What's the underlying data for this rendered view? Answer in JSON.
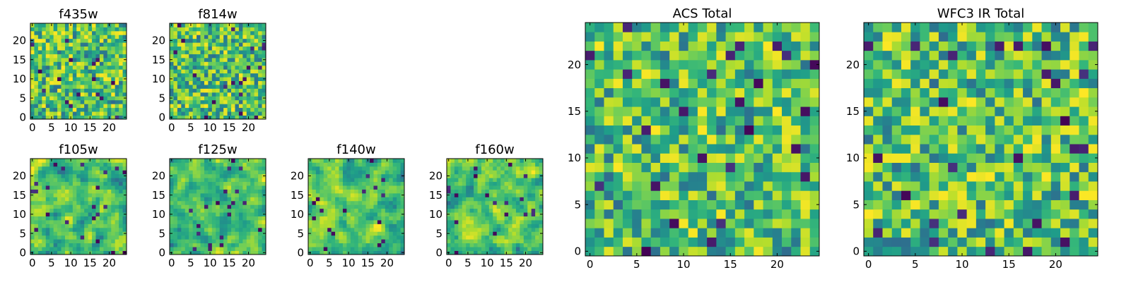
{
  "figure": {
    "background": "#ffffff"
  },
  "chart_data": [
    {
      "type": "heatmap",
      "title": "f435w",
      "xticks": [
        "0",
        "5",
        "10",
        "15",
        "20"
      ],
      "yticks": [
        "0",
        "5",
        "10",
        "15",
        "20"
      ],
      "xlim": [
        -0.5,
        24.5
      ],
      "ylim": [
        -0.5,
        24.5
      ],
      "grid_size": 25,
      "colormap": "viridis",
      "grid": false
    },
    {
      "type": "heatmap",
      "title": "f814w",
      "xticks": [
        "0",
        "5",
        "10",
        "15",
        "20"
      ],
      "yticks": [
        "0",
        "5",
        "10",
        "15",
        "20"
      ],
      "xlim": [
        -0.5,
        24.5
      ],
      "ylim": [
        -0.5,
        24.5
      ],
      "grid_size": 25,
      "colormap": "viridis",
      "grid": false
    },
    {
      "type": "heatmap",
      "title": "f105w",
      "xticks": [
        "0",
        "5",
        "10",
        "15",
        "20"
      ],
      "yticks": [
        "0",
        "5",
        "10",
        "15",
        "20"
      ],
      "xlim": [
        -0.5,
        24.5
      ],
      "ylim": [
        -0.5,
        24.5
      ],
      "grid_size": 25,
      "colormap": "viridis",
      "grid": false
    },
    {
      "type": "heatmap",
      "title": "f125w",
      "xticks": [
        "0",
        "5",
        "10",
        "15",
        "20"
      ],
      "yticks": [
        "0",
        "5",
        "10",
        "15",
        "20"
      ],
      "xlim": [
        -0.5,
        24.5
      ],
      "ylim": [
        -0.5,
        24.5
      ],
      "grid_size": 25,
      "colormap": "viridis",
      "grid": false
    },
    {
      "type": "heatmap",
      "title": "f140w",
      "xticks": [
        "0",
        "5",
        "10",
        "15",
        "20"
      ],
      "yticks": [
        "0",
        "5",
        "10",
        "15",
        "20"
      ],
      "xlim": [
        -0.5,
        24.5
      ],
      "ylim": [
        -0.5,
        24.5
      ],
      "grid_size": 25,
      "colormap": "viridis",
      "grid": false
    },
    {
      "type": "heatmap",
      "title": "f160w",
      "xticks": [
        "0",
        "5",
        "10",
        "15",
        "20"
      ],
      "yticks": [
        "0",
        "5",
        "10",
        "15",
        "20"
      ],
      "xlim": [
        -0.5,
        24.5
      ],
      "ylim": [
        -0.5,
        24.5
      ],
      "grid_size": 25,
      "colormap": "viridis",
      "grid": false
    },
    {
      "type": "heatmap",
      "title": "ACS Total",
      "xticks": [
        "0",
        "5",
        "10",
        "15",
        "20"
      ],
      "yticks": [
        "0",
        "5",
        "10",
        "15",
        "20"
      ],
      "xlim": [
        -0.5,
        24.5
      ],
      "ylim": [
        -0.5,
        24.5
      ],
      "grid_size": 25,
      "colormap": "viridis",
      "grid": false
    },
    {
      "type": "heatmap",
      "title": "WFC3 IR Total",
      "xticks": [
        "0",
        "5",
        "10",
        "15",
        "20"
      ],
      "yticks": [
        "0",
        "5",
        "10",
        "15",
        "20"
      ],
      "xlim": [
        -0.5,
        24.5
      ],
      "ylim": [
        -0.5,
        24.5
      ],
      "grid_size": 25,
      "colormap": "viridis",
      "grid": false
    }
  ]
}
